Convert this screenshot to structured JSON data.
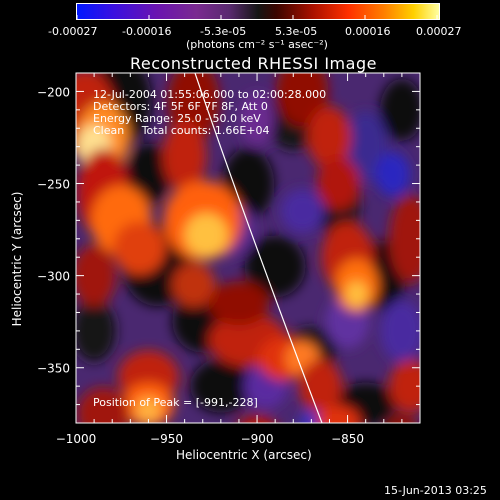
{
  "colorbar": {
    "tick_labels": [
      "-0.00027",
      "-0.00016",
      "-5.3e-05",
      "5.3e-05",
      "0.00016",
      "0.00027"
    ],
    "units": "(photons cm⁻² s⁻¹ asec⁻²)"
  },
  "chart_data": {
    "type": "heatmap",
    "title": "Reconstructed RHESSI Image",
    "xlabel": "Heliocentric X (arcsec)",
    "ylabel": "Heliocentric Y (arcsec)",
    "xlim": [
      -1000,
      -810
    ],
    "ylim": [
      -380,
      -190
    ],
    "x_ticks": [
      -1000,
      -950,
      -900,
      -850
    ],
    "y_ticks": [
      -200,
      -250,
      -300,
      -350
    ],
    "x_tick_labels": [
      "−1000",
      "−950",
      "−900",
      "−850"
    ],
    "y_tick_labels": [
      "−200",
      "−250",
      "−300",
      "−350"
    ],
    "colorscale_range": [
      -0.00027,
      0.00027
    ],
    "annotations": [
      "12-Jul-2004 01:55:06.000 to 02:00:28.000",
      "Detectors: 4F 5F 6F 7F 8F, Att 0",
      "Energy Range: 25.0 - 50.0 keV",
      "Clean     Total counts: 1.66E+04"
    ],
    "peak_label": "Position of Peak = [-991,-228]",
    "peak": {
      "x": -991,
      "y": -228
    }
  },
  "footer": {
    "timestamp": "15-Jun-2013 03:25"
  }
}
